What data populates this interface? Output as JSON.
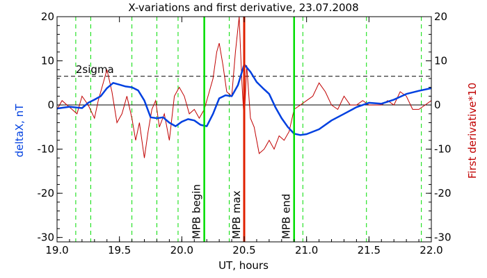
{
  "chart_data": {
    "type": "line",
    "title": "X-variations and first derivative, 23.07.2008",
    "xlabel": "UT, hours",
    "ylabel_left": "deltaX, nT",
    "ylabel_right": "First derivative*10",
    "xlim": [
      19.0,
      22.0
    ],
    "ylim": [
      -31,
      20
    ],
    "x_ticks": [
      19.0,
      19.5,
      20.0,
      20.5,
      21.0,
      21.5,
      22.0
    ],
    "x_tick_labels": [
      "19.0",
      "19.5",
      "20.0",
      "20.5",
      "21.0",
      "21.5",
      "22.0"
    ],
    "y_ticks": [
      20,
      10,
      0,
      -10,
      -20,
      -30
    ],
    "y_tick_labels": [
      "20",
      "10",
      "0",
      "-10",
      "-20",
      "-30"
    ],
    "grid": false,
    "colors": {
      "deltaX": "#0040e0",
      "derivative": "#c00000",
      "markers": "#00dd00",
      "max_line": "#e02000",
      "threshold": "#000000"
    },
    "series": [
      {
        "key": "deltaX",
        "x": [
          19.0,
          19.1,
          19.2,
          19.25,
          19.3,
          19.35,
          19.4,
          19.45,
          19.5,
          19.55,
          19.6,
          19.65,
          19.7,
          19.75,
          19.8,
          19.85,
          19.9,
          19.95,
          20.0,
          20.05,
          20.1,
          20.15,
          20.2,
          20.25,
          20.3,
          20.35,
          20.4,
          20.45,
          20.5,
          20.55,
          20.6,
          20.65,
          20.7,
          20.75,
          20.8,
          20.85,
          20.9,
          20.95,
          21.0,
          21.1,
          21.2,
          21.3,
          21.4,
          21.5,
          21.6,
          21.7,
          21.8,
          21.9,
          22.0
        ],
        "y": [
          -0.8,
          -0.4,
          -0.7,
          0.5,
          1.2,
          2.0,
          3.8,
          5.0,
          4.6,
          4.2,
          4.0,
          3.3,
          1.0,
          -2.8,
          -3.0,
          -2.8,
          -4.0,
          -4.8,
          -3.8,
          -3.2,
          -3.5,
          -4.5,
          -4.8,
          -2.0,
          1.5,
          2.2,
          2.0,
          4.5,
          9.2,
          7.5,
          5.2,
          3.8,
          2.5,
          -0.5,
          -3.0,
          -5.0,
          -6.5,
          -6.8,
          -6.6,
          -5.5,
          -3.5,
          -2.0,
          -0.5,
          0.5,
          0.3,
          1.2,
          2.5,
          3.2,
          3.8
        ]
      },
      {
        "key": "derivative",
        "x": [
          19.0,
          19.04,
          19.08,
          19.12,
          19.16,
          19.2,
          19.25,
          19.3,
          19.33,
          19.37,
          19.4,
          19.44,
          19.48,
          19.52,
          19.56,
          19.6,
          19.63,
          19.66,
          19.7,
          19.73,
          19.76,
          19.79,
          19.82,
          19.86,
          19.9,
          19.94,
          19.98,
          20.02,
          20.06,
          20.1,
          20.14,
          20.18,
          20.22,
          20.25,
          20.28,
          20.3,
          20.33,
          20.36,
          20.4,
          20.43,
          20.46,
          20.48,
          20.5,
          20.52,
          20.55,
          20.58,
          20.62,
          20.66,
          20.7,
          20.74,
          20.78,
          20.82,
          20.86,
          20.9,
          20.95,
          21.0,
          21.05,
          21.1,
          21.15,
          21.2,
          21.25,
          21.3,
          21.35,
          21.4,
          21.45,
          21.5,
          21.55,
          21.6,
          21.65,
          21.7,
          21.75,
          21.8,
          21.85,
          21.9,
          21.95,
          22.0
        ],
        "y": [
          -1,
          1,
          0,
          -1,
          -2,
          2,
          0,
          -3,
          1,
          5,
          8,
          3,
          -4,
          -2,
          2,
          -3,
          -8,
          -4,
          -12,
          -6,
          -1,
          1,
          -5,
          -2,
          -8,
          2,
          4,
          2,
          -2,
          -1,
          -3,
          -1,
          3,
          6,
          12,
          14,
          9,
          3,
          2,
          12,
          20,
          6,
          -4,
          9,
          -3,
          -5,
          -11,
          -10,
          -8,
          -10,
          -7,
          -8,
          -6,
          -1,
          0,
          1,
          2,
          5,
          3,
          0,
          -1,
          2,
          0,
          0,
          1,
          0,
          0,
          0,
          1,
          0,
          3,
          2,
          -1,
          -1,
          0,
          1
        ]
      }
    ],
    "horizontal_lines": [
      {
        "key": "zero",
        "y": 0,
        "style": "solid"
      },
      {
        "key": "sigma",
        "y": 6.5,
        "style": "dashed",
        "label": "2sigma"
      }
    ],
    "vertical_markers": {
      "dashed": [
        19.15,
        19.27,
        19.6,
        19.8,
        19.97,
        20.38,
        20.97,
        21.48,
        21.92
      ],
      "events": [
        {
          "x": 20.18,
          "label": "MPB begin",
          "kind": "markers"
        },
        {
          "x": 20.5,
          "label": "MPB max",
          "kind": "max_line"
        },
        {
          "x": 20.9,
          "label": "MPB end",
          "kind": "markers"
        }
      ]
    }
  }
}
